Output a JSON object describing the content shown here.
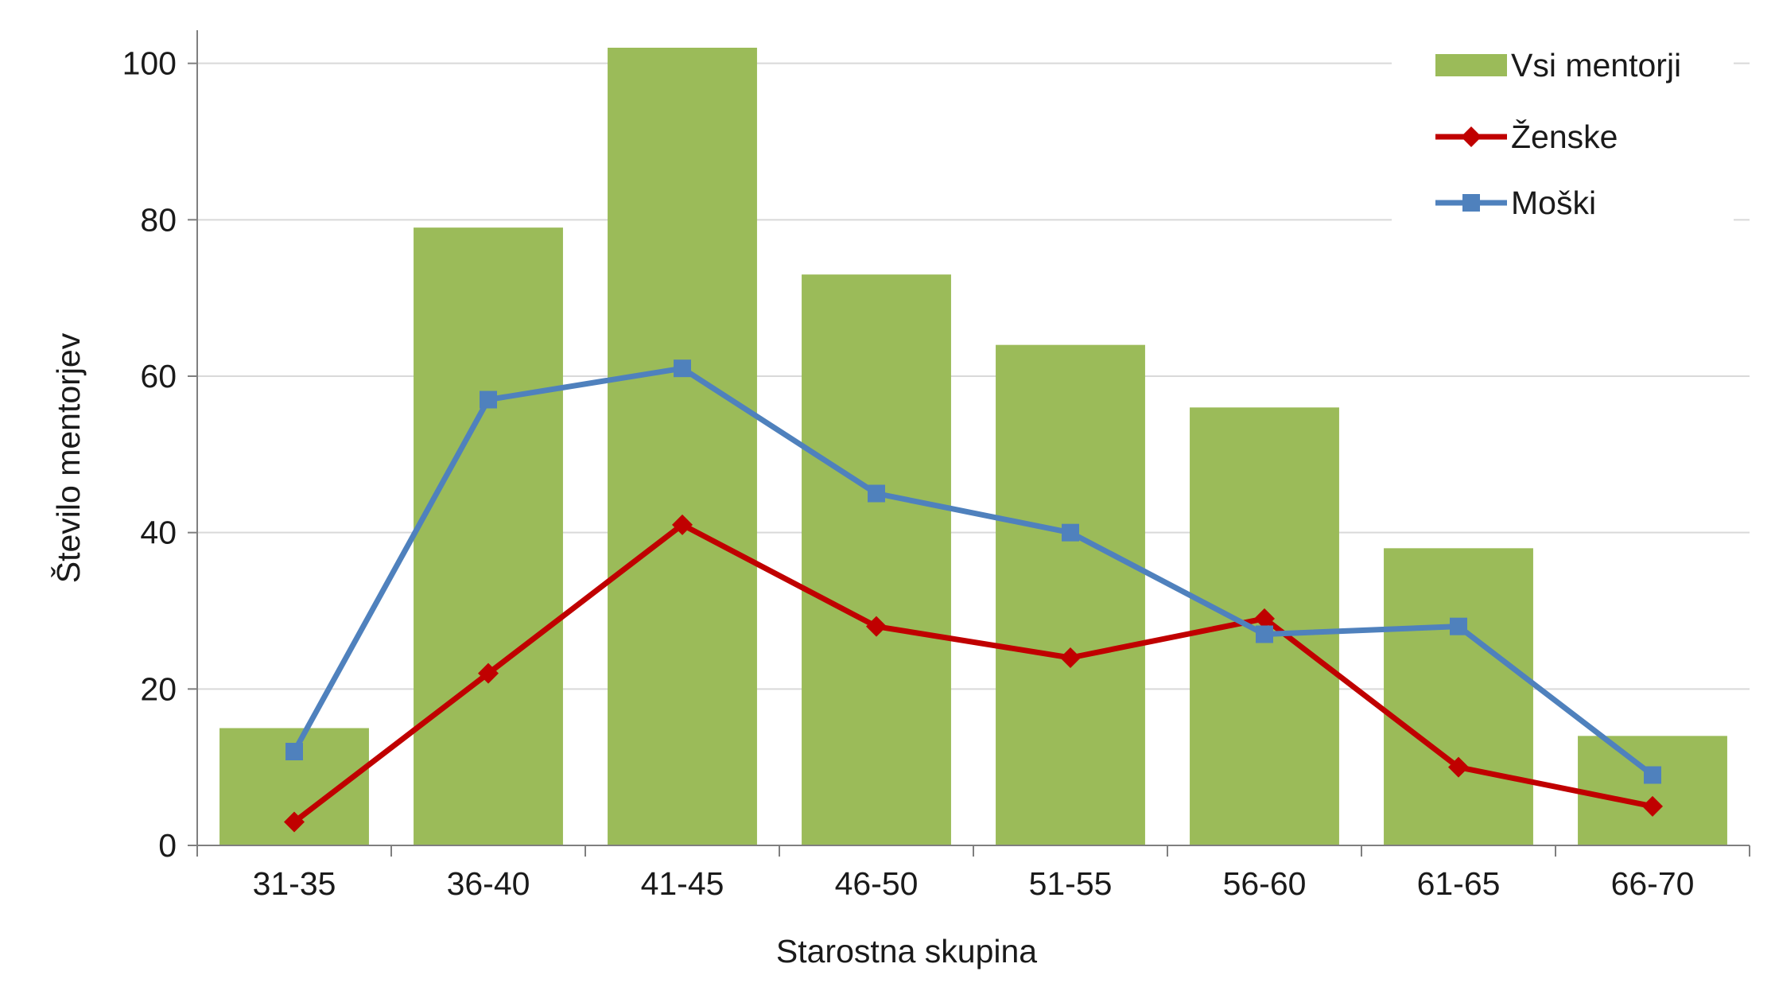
{
  "chart_data": {
    "type": "bar",
    "categories": [
      "31-35",
      "36-40",
      "41-45",
      "46-50",
      "51-55",
      "56-60",
      "61-65",
      "66-70"
    ],
    "series": [
      {
        "name": "Vsi mentorji",
        "type": "bar",
        "color": "#9BBB59",
        "marker": "rect",
        "values": [
          15,
          79,
          102,
          73,
          64,
          56,
          38,
          14
        ]
      },
      {
        "name": "Ženske",
        "type": "line",
        "color": "#C00000",
        "marker": "diamond",
        "values": [
          3,
          22,
          41,
          28,
          24,
          29,
          10,
          5
        ]
      },
      {
        "name": "Moški",
        "type": "line",
        "color": "#4F81BD",
        "marker": "square",
        "values": [
          12,
          57,
          61,
          45,
          40,
          27,
          28,
          9
        ]
      }
    ],
    "xlabel": "Starostna skupina",
    "ylabel": "Število mentorjev",
    "ylim": [
      0,
      100
    ],
    "yticks": [
      "0",
      "20",
      "40",
      "60",
      "80",
      "100"
    ],
    "grid": true,
    "legend_position": "top-right"
  }
}
